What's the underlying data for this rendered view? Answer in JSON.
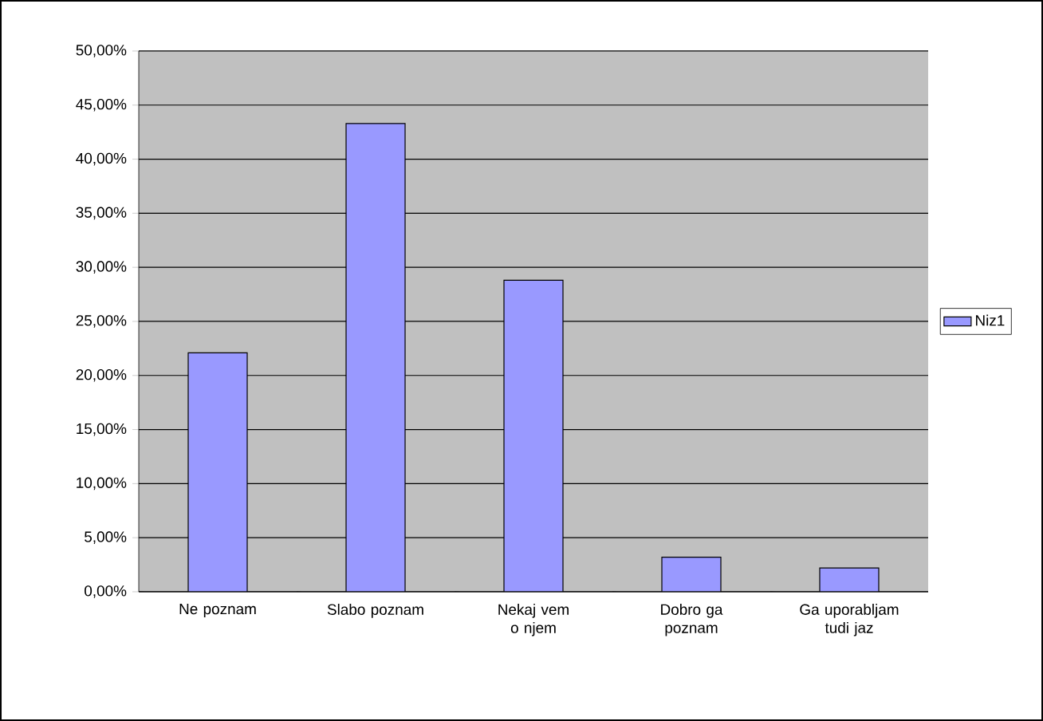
{
  "chart_data": {
    "type": "bar",
    "categories": [
      "Ne poznam",
      "Slabo poznam",
      "Nekaj vem o njem",
      "Dobro ga poznam",
      "Ga uporabljam tudi jaz"
    ],
    "series": [
      {
        "name": "Niz1",
        "color": "#9999ff",
        "values": [
          22.1,
          43.3,
          28.8,
          3.2,
          2.2
        ]
      }
    ],
    "ylim": [
      0,
      50
    ],
    "yticks": [
      {
        "value": 0,
        "label": "0,00%"
      },
      {
        "value": 5,
        "label": "5,00%"
      },
      {
        "value": 10,
        "label": "10,00%"
      },
      {
        "value": 15,
        "label": "15,00%"
      },
      {
        "value": 20,
        "label": "20,00%"
      },
      {
        "value": 25,
        "label": "25,00%"
      },
      {
        "value": 30,
        "label": "30,00%"
      },
      {
        "value": 35,
        "label": "35,00%"
      },
      {
        "value": 40,
        "label": "40,00%"
      },
      {
        "value": 45,
        "label": "45,00%"
      },
      {
        "value": 50,
        "label": "50,00%"
      }
    ],
    "grid": "y",
    "legend": "right"
  }
}
